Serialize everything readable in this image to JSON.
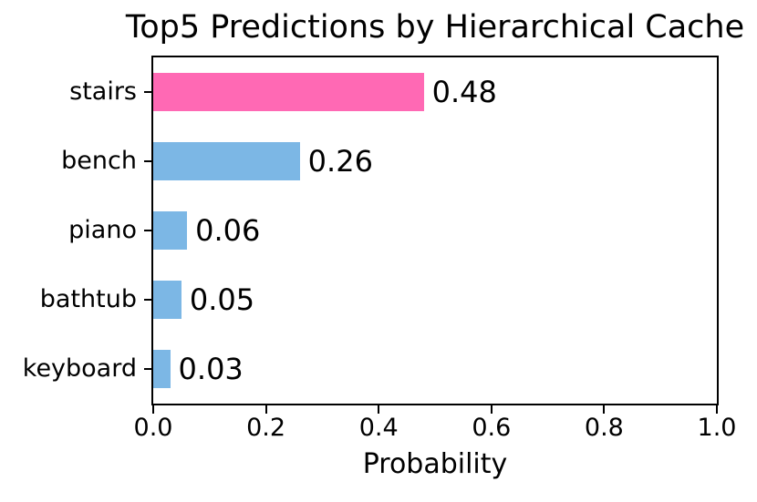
{
  "chart_data": {
    "type": "bar",
    "orientation": "horizontal",
    "title": "Top5 Predictions by Hierarchical Cache",
    "xlabel": "Probability",
    "ylabel": "",
    "categories": [
      "stairs",
      "bench",
      "piano",
      "bathtub",
      "keyboard"
    ],
    "values": [
      0.48,
      0.26,
      0.06,
      0.05,
      0.03
    ],
    "value_labels": [
      "0.48",
      "0.26",
      "0.06",
      "0.05",
      "0.03"
    ],
    "bar_colors": [
      "#FF69B4",
      "#7CB7E5",
      "#7CB7E5",
      "#7CB7E5",
      "#7CB7E5"
    ],
    "highlight_color": "#FF69B4",
    "default_bar_color": "#7CB7E5",
    "xlim": [
      0.0,
      1.0
    ],
    "x_ticks": [
      0.0,
      0.2,
      0.4,
      0.6,
      0.8,
      1.0
    ],
    "x_tick_labels": [
      "0.0",
      "0.2",
      "0.4",
      "0.6",
      "0.8",
      "1.0"
    ],
    "grid": false,
    "legend": null,
    "axis_color": "#000000",
    "text_color": "#000000"
  }
}
